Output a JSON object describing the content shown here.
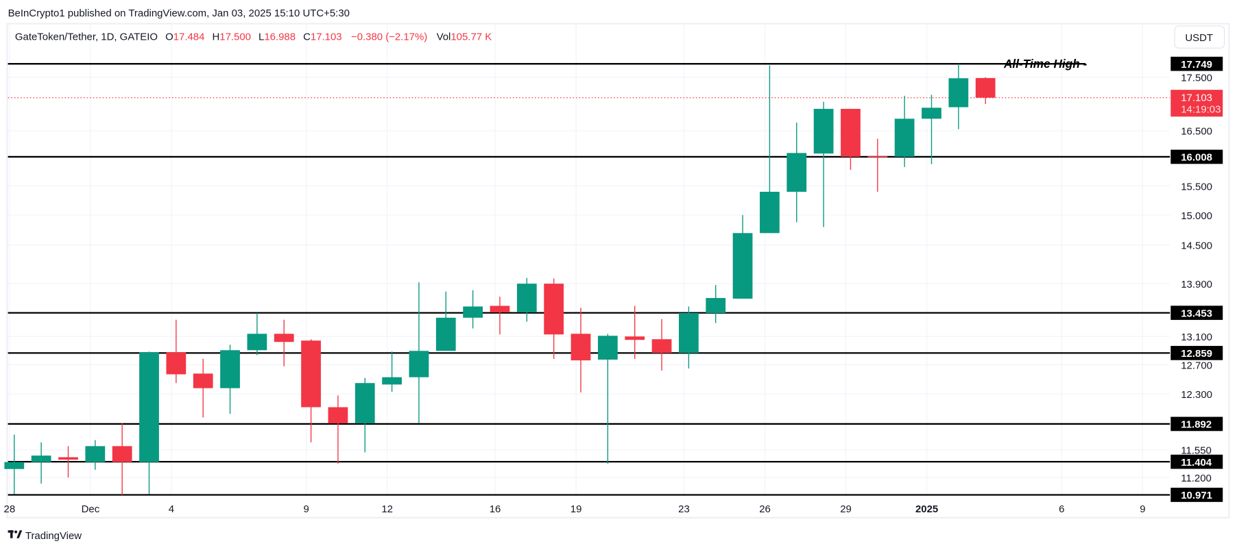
{
  "header": {
    "published": "BeInCrypto1 published on TradingView.com, Jan 03, 2025 15:10 UTC+5:30"
  },
  "legend": {
    "symbol": "GateToken/Tether, 1D, GATEIO",
    "o_label": "O",
    "o": "17.484",
    "h_label": "H",
    "h": "17.500",
    "l_label": "L",
    "l": "16.988",
    "c_label": "C",
    "c": "17.103",
    "change": "−0.380 (−2.17%)",
    "vol_label": "Vol",
    "vol": "105.77 K"
  },
  "currency_button": "USDT",
  "footer": {
    "brand": "TradingView"
  },
  "colors": {
    "up": "#089981",
    "down": "#f23645",
    "level": "#000000",
    "grid": "#f0f3fa"
  },
  "chart_data": {
    "type": "candlestick",
    "title": "GateToken/Tether, 1D, GATEIO",
    "start_date": "2024-11-28",
    "ohlc": [
      [
        11.31,
        11.75,
        10.98,
        11.4
      ],
      [
        11.4,
        11.65,
        11.12,
        11.48
      ],
      [
        11.46,
        11.6,
        11.2,
        11.43
      ],
      [
        11.4,
        11.68,
        11.3,
        11.6
      ],
      [
        11.6,
        11.9,
        10.97,
        11.4
      ],
      [
        11.4,
        12.88,
        10.98,
        12.87
      ],
      [
        12.87,
        13.35,
        12.45,
        12.57
      ],
      [
        12.58,
        12.78,
        11.98,
        12.38
      ],
      [
        12.38,
        12.98,
        12.03,
        12.9
      ],
      [
        12.9,
        13.45,
        12.83,
        13.14
      ],
      [
        13.14,
        13.35,
        12.68,
        13.02
      ],
      [
        13.04,
        13.06,
        11.65,
        12.12
      ],
      [
        12.12,
        12.28,
        11.38,
        11.9
      ],
      [
        11.9,
        12.52,
        11.52,
        12.45
      ],
      [
        12.43,
        12.88,
        12.33,
        12.53
      ],
      [
        12.53,
        13.92,
        11.9,
        12.89
      ],
      [
        12.89,
        13.78,
        12.89,
        13.38
      ],
      [
        13.38,
        13.8,
        13.22,
        13.55
      ],
      [
        13.56,
        13.7,
        13.13,
        13.46
      ],
      [
        13.46,
        13.99,
        13.32,
        13.9
      ],
      [
        13.9,
        13.98,
        12.78,
        13.13
      ],
      [
        13.14,
        13.53,
        12.32,
        12.76
      ],
      [
        12.77,
        13.14,
        11.38,
        13.11
      ],
      [
        13.1,
        13.56,
        12.78,
        13.05
      ],
      [
        13.06,
        13.36,
        12.62,
        12.86
      ],
      [
        12.86,
        13.55,
        12.65,
        13.45
      ],
      [
        13.45,
        13.88,
        13.3,
        13.68
      ],
      [
        13.67,
        15.0,
        13.67,
        14.7
      ],
      [
        14.7,
        17.72,
        14.7,
        15.4
      ],
      [
        15.4,
        16.65,
        14.88,
        16.08
      ],
      [
        16.07,
        17.03,
        14.8,
        16.9
      ],
      [
        16.9,
        16.9,
        15.78,
        16.01
      ],
      [
        16.02,
        16.35,
        15.4,
        16.01
      ],
      [
        16.01,
        17.14,
        15.83,
        16.72
      ],
      [
        16.72,
        17.16,
        15.88,
        16.92
      ],
      [
        16.93,
        17.749,
        16.53,
        17.48
      ],
      [
        17.484,
        17.5,
        16.988,
        17.103
      ]
    ],
    "y_ticks": [
      "17.500",
      "16.500",
      "15.500",
      "15.000",
      "14.500",
      "13.900",
      "13.100",
      "12.700",
      "12.300",
      "11.550",
      "11.200"
    ],
    "x_ticks": [
      {
        "label": "28",
        "day": 0
      },
      {
        "label": "Dec",
        "day": 3
      },
      {
        "label": "4",
        "day": 6
      },
      {
        "label": "9",
        "day": 11
      },
      {
        "label": "12",
        "day": 14
      },
      {
        "label": "16",
        "day": 18
      },
      {
        "label": "19",
        "day": 21
      },
      {
        "label": "23",
        "day": 25
      },
      {
        "label": "26",
        "day": 28
      },
      {
        "label": "29",
        "day": 31
      },
      {
        "label": "2025",
        "day": 34,
        "bold": true
      },
      {
        "label": "6",
        "day": 39
      },
      {
        "label": "9",
        "day": 42
      }
    ],
    "levels": [
      {
        "price": 17.749,
        "label": "17.749",
        "annotation": "All-Time High -"
      },
      {
        "price": 16.008,
        "label": "16.008"
      },
      {
        "price": 13.453,
        "label": "13.453"
      },
      {
        "price": 12.859,
        "label": "12.859"
      },
      {
        "price": 11.892,
        "label": "11.892"
      },
      {
        "price": 11.404,
        "label": "11.404"
      },
      {
        "price": 10.971,
        "label": "10.971"
      }
    ],
    "last_price": {
      "price": 17.103,
      "label": "17.103",
      "countdown": "14:19:03"
    },
    "ylim": [
      10.971,
      17.749
    ]
  }
}
